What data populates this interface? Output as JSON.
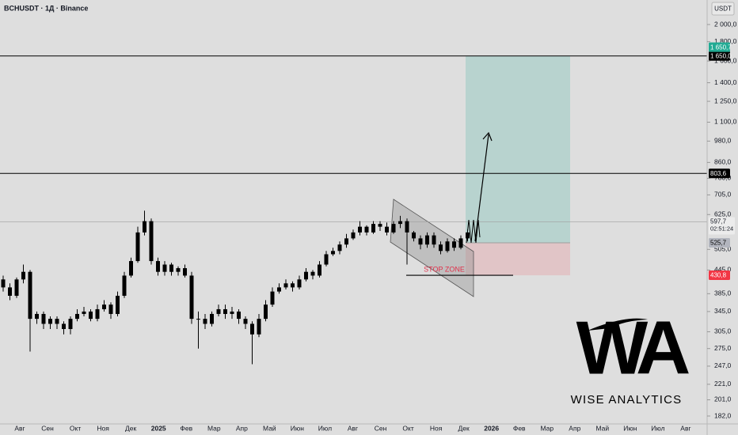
{
  "chart_data": {
    "type": "candlestick",
    "title": "BCHUSDT · 1Д · Binance",
    "currency": "USDT",
    "log_scale": true,
    "up_color": "#000000",
    "down_color": "#000000",
    "ylim": [
      173.4,
      2324
    ],
    "yticks": [
      {
        "value": 2000,
        "label": "2 000,0"
      },
      {
        "value": 1800,
        "label": "1 800,0"
      },
      {
        "value": 1600,
        "label": "1 600,0"
      },
      {
        "value": 1400,
        "label": "1 400,0"
      },
      {
        "value": 1250,
        "label": "1 250,0"
      },
      {
        "value": 1100,
        "label": "1 100,0"
      },
      {
        "value": 980,
        "label": "980,0"
      },
      {
        "value": 860,
        "label": "860,0"
      },
      {
        "value": 780,
        "label": "780,0"
      },
      {
        "value": 705,
        "label": "705,0"
      },
      {
        "value": 625,
        "label": "625,0"
      },
      {
        "value": 505,
        "label": "505,0"
      },
      {
        "value": 445,
        "label": "445,0"
      },
      {
        "value": 385,
        "label": "385,0"
      },
      {
        "value": 345,
        "label": "345,0"
      },
      {
        "value": 305,
        "label": "305,0"
      },
      {
        "value": 275,
        "label": "275,0"
      },
      {
        "value": 247,
        "label": "247,0"
      },
      {
        "value": 221,
        "label": "221,0"
      },
      {
        "value": 201,
        "label": "201,0"
      },
      {
        "value": 182,
        "label": "182,0"
      }
    ],
    "x_labels": [
      "Авг",
      "Сен",
      "Окт",
      "Ноя",
      "Дек",
      "2025",
      "Фев",
      "Мар",
      "Апр",
      "Май",
      "Июн",
      "Июл",
      "Авг",
      "Сен",
      "Окт",
      "Ноя",
      "Дек",
      "2026",
      "Фев",
      "Мар",
      "Апр",
      "Май",
      "Июн",
      "Июл",
      "Авг"
    ],
    "open": [
      420,
      400,
      380,
      420,
      440,
      330,
      340,
      320,
      330,
      320,
      310,
      330,
      340,
      345,
      330,
      350,
      360,
      340,
      380,
      430,
      470,
      560,
      600,
      470,
      440,
      460,
      440,
      450,
      430,
      330,
      330,
      320,
      340,
      350,
      340,
      345,
      330,
      320,
      300,
      330,
      360,
      390,
      400,
      410,
      400,
      420,
      440,
      430,
      460,
      490,
      500,
      520,
      540,
      560,
      580,
      560,
      590,
      580,
      560,
      590,
      600,
      560,
      540,
      520,
      550,
      520,
      500,
      530,
      510,
      540
    ],
    "high": [
      430,
      410,
      425,
      460,
      445,
      345,
      345,
      335,
      335,
      325,
      335,
      350,
      355,
      350,
      360,
      370,
      365,
      390,
      440,
      480,
      580,
      640,
      610,
      480,
      470,
      465,
      455,
      460,
      440,
      345,
      340,
      345,
      360,
      360,
      355,
      350,
      335,
      325,
      340,
      370,
      400,
      410,
      420,
      415,
      430,
      450,
      445,
      470,
      500,
      510,
      530,
      555,
      570,
      600,
      585,
      600,
      600,
      595,
      600,
      620,
      610,
      565,
      550,
      560,
      560,
      530,
      540,
      540,
      550,
      570
    ],
    "low": [
      390,
      370,
      375,
      410,
      270,
      320,
      310,
      310,
      310,
      300,
      300,
      325,
      335,
      325,
      325,
      345,
      330,
      335,
      375,
      425,
      465,
      550,
      460,
      430,
      430,
      430,
      430,
      425,
      320,
      275,
      310,
      315,
      335,
      330,
      330,
      320,
      310,
      250,
      295,
      325,
      355,
      385,
      395,
      390,
      395,
      415,
      420,
      425,
      455,
      485,
      490,
      510,
      535,
      550,
      550,
      555,
      565,
      550,
      555,
      575,
      460,
      530,
      505,
      510,
      510,
      490,
      495,
      500,
      505,
      530
    ],
    "close": [
      400,
      380,
      420,
      440,
      330,
      340,
      320,
      330,
      320,
      310,
      330,
      340,
      345,
      330,
      350,
      360,
      340,
      380,
      430,
      470,
      560,
      600,
      470,
      440,
      460,
      440,
      450,
      430,
      330,
      330,
      320,
      340,
      350,
      340,
      345,
      330,
      320,
      300,
      330,
      360,
      390,
      400,
      410,
      400,
      420,
      440,
      430,
      460,
      490,
      500,
      520,
      540,
      560,
      580,
      560,
      590,
      580,
      560,
      590,
      600,
      560,
      540,
      520,
      550,
      520,
      500,
      530,
      510,
      540,
      560
    ],
    "horizontal_lines": [
      {
        "value": 1650,
        "label": "1 650,0"
      },
      {
        "value": 803.6,
        "label": "803,6"
      }
    ],
    "last_price": {
      "value": 597.7,
      "label": "597,7",
      "countdown": "02:51:24"
    },
    "position": {
      "target": {
        "value": 1650.7,
        "label": "1 650,7",
        "color": "#22ab94"
      },
      "entry": {
        "value": 525.7,
        "label": "525,7",
        "color": "#b2b5be"
      },
      "stop": {
        "value": 430.8,
        "label": "430,8",
        "color": "#f23645"
      }
    },
    "annotation": "STOP ZONE"
  },
  "logo": {
    "mark": "WA",
    "name": "WISE ANALYTICS"
  }
}
